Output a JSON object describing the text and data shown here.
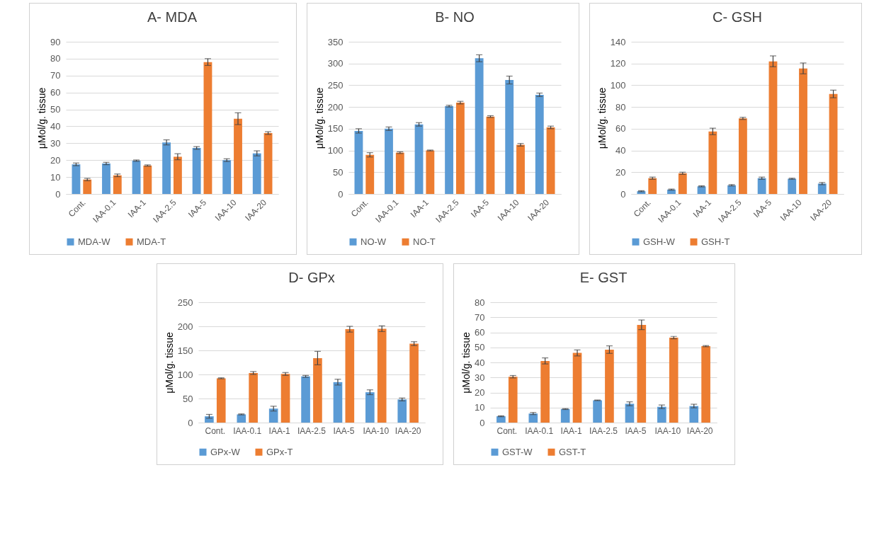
{
  "chart_data": [
    {
      "type": "bar",
      "title": "A-  MDA",
      "ylabel": "μMol/g. tissue",
      "categories": [
        "Cont.",
        "IAA-0.1",
        "IAA-1",
        "IAA-2.5",
        "IAA-5",
        "IAA-10",
        "IAA-20"
      ],
      "ylim": [
        0,
        90
      ],
      "yticks": [
        0,
        10,
        20,
        30,
        40,
        50,
        60,
        70,
        80,
        90
      ],
      "grid": "y",
      "legend": "bottom",
      "series": [
        {
          "name": "MDA-W",
          "color": "#5b9bd5",
          "values": [
            17.5,
            18,
            19.7,
            30.5,
            27.2,
            20,
            24
          ],
          "errors": [
            0.8,
            0.7,
            0.4,
            1.5,
            0.8,
            0.8,
            1.5
          ]
        },
        {
          "name": "MDA-T",
          "color": "#ed7d31",
          "values": [
            8.5,
            11,
            16.8,
            22,
            78,
            44.5,
            36
          ],
          "errors": [
            0.7,
            0.8,
            0.4,
            1.8,
            2,
            3.5,
            0.8
          ]
        }
      ]
    },
    {
      "type": "bar",
      "title": "B-  NO",
      "ylabel": "μMol/g. tissue",
      "categories": [
        "Cont.",
        "IAA-0.1",
        "IAA-1",
        "IAA-2.5",
        "IAA-5",
        "IAA-10",
        "IAA-20"
      ],
      "ylim": [
        0,
        350
      ],
      "yticks": [
        0,
        50,
        100,
        150,
        200,
        250,
        300,
        350
      ],
      "grid": "y",
      "legend": "bottom",
      "series": [
        {
          "name": "NO-W",
          "color": "#5b9bd5",
          "values": [
            145,
            150,
            160,
            202,
            312,
            262,
            228
          ],
          "errors": [
            5,
            4,
            4,
            2,
            8,
            9,
            4
          ]
        },
        {
          "name": "NO-T",
          "color": "#ed7d31",
          "values": [
            90,
            95,
            100,
            210,
            178,
            113,
            153
          ],
          "errors": [
            5,
            2,
            1,
            3,
            2,
            3,
            3
          ]
        }
      ]
    },
    {
      "type": "bar",
      "title": "C-  GSH",
      "ylabel": "μMol/g. tissue",
      "categories": [
        "Cont.",
        "IAA-0.1",
        "IAA-1",
        "IAA-2.5",
        "IAA-5",
        "IAA-10",
        "IAA-20"
      ],
      "ylim": [
        0,
        140
      ],
      "yticks": [
        0,
        20,
        40,
        60,
        80,
        100,
        120,
        140
      ],
      "grid": "y",
      "legend": "bottom",
      "series": [
        {
          "name": "GSH-W",
          "color": "#5b9bd5",
          "values": [
            2.5,
            4,
            7,
            8,
            14.5,
            14,
            9.5
          ],
          "errors": [
            0.5,
            0.5,
            0.5,
            0.6,
            1,
            0.5,
            1
          ]
        },
        {
          "name": "GSH-T",
          "color": "#ed7d31",
          "values": [
            14.5,
            19,
            57.5,
            69.5,
            122,
            115.5,
            92
          ],
          "errors": [
            1,
            1,
            3,
            1,
            5,
            5,
            3.5
          ]
        }
      ]
    },
    {
      "type": "bar",
      "title": "D-  GPx",
      "ylabel": "μMol/g. tissue",
      "categories": [
        "Cont.",
        "IAA-0.1",
        "IAA-1",
        "IAA-2.5",
        "IAA-5",
        "IAA-10",
        "IAA-20"
      ],
      "ylim": [
        0,
        250
      ],
      "yticks": [
        0,
        50,
        100,
        150,
        200,
        250
      ],
      "grid": "y",
      "legend": "bottom",
      "series": [
        {
          "name": "GPx-W",
          "color": "#5b9bd5",
          "values": [
            13,
            17,
            29,
            96,
            84,
            63,
            48
          ],
          "errors": [
            4,
            1,
            5,
            2,
            6,
            5,
            3
          ]
        },
        {
          "name": "GPx-T",
          "color": "#ed7d31",
          "values": [
            92,
            103,
            101,
            134,
            194,
            195,
            164
          ],
          "errors": [
            1,
            3,
            3,
            14,
            6,
            6,
            4
          ]
        }
      ]
    },
    {
      "type": "bar",
      "title": "E-  GST",
      "ylabel": "μMol/g. tissue",
      "categories": [
        "Cont.",
        "IAA-0.1",
        "IAA-1",
        "IAA-2.5",
        "IAA-5",
        "IAA-10",
        "IAA-20"
      ],
      "ylim": [
        0,
        80
      ],
      "yticks": [
        0,
        10,
        20,
        30,
        40,
        50,
        60,
        70,
        80
      ],
      "grid": "y",
      "legend": "bottom",
      "series": [
        {
          "name": "GST-W",
          "color": "#5b9bd5",
          "values": [
            4.2,
            6,
            9,
            14.8,
            12.5,
            10.5,
            11
          ],
          "errors": [
            0.3,
            0.7,
            0.3,
            0.2,
            1.3,
            1.2,
            1.2
          ]
        },
        {
          "name": "GST-T",
          "color": "#ed7d31",
          "values": [
            30.5,
            41,
            46.3,
            48.5,
            65,
            56.5,
            50.8
          ],
          "errors": [
            0.8,
            2,
            2,
            2.5,
            3.2,
            0.8,
            0.4
          ]
        }
      ]
    }
  ]
}
